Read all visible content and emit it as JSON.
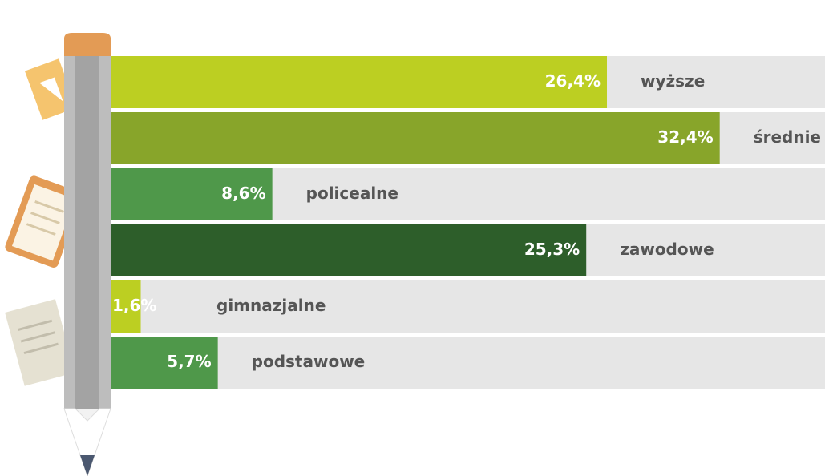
{
  "chart_data": {
    "type": "bar",
    "orientation": "horizontal",
    "categories": [
      "wyższe",
      "średnie",
      "policealne",
      "zawodowe",
      "gimnazjalne",
      "podstawowe"
    ],
    "values": [
      26.4,
      32.4,
      8.6,
      25.3,
      1.6,
      5.7
    ],
    "value_labels": [
      "26,4%",
      "32,4%",
      "8,6%",
      "25,3%",
      "1,6%",
      "5,7%"
    ],
    "colors": [
      "#bccf22",
      "#88a52a",
      "#4f984a",
      "#2d5e2a",
      "#bccf22",
      "#4f984a"
    ],
    "xlim": [
      0,
      38
    ]
  }
}
